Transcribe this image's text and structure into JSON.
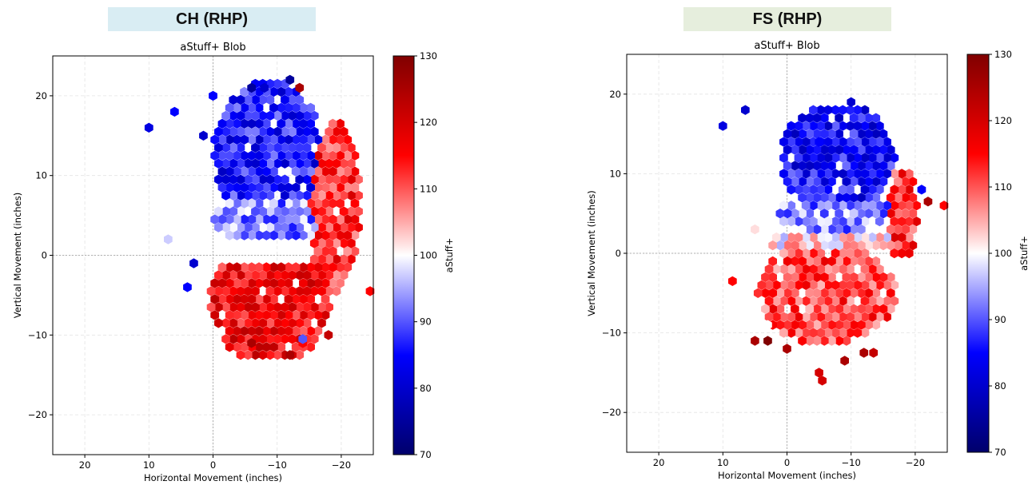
{
  "panels": [
    {
      "banner": "CH (RHP)",
      "banner_color": "#d9edf3"
    },
    {
      "banner": "FS (RHP)",
      "banner_color": "#e6eedd"
    }
  ],
  "colormap": {
    "name": "seismic",
    "low": "#00006b",
    "mid": "#ffffff",
    "high": "#800000"
  },
  "chart_data": [
    {
      "type": "heatmap",
      "subtype": "hexbin",
      "title": "aStuff+ Blob",
      "xlabel": "Horizontal Movement (inches)",
      "ylabel": "Vertical Movement (inches)",
      "xlim": [
        25,
        -25
      ],
      "ylim": [
        -25,
        25
      ],
      "xticks": [
        "20",
        "10",
        "0",
        "−10",
        "−20"
      ],
      "yticks": [
        "−20",
        "−10",
        "0",
        "10",
        "20"
      ],
      "grid": true,
      "colorbar": {
        "label": "aStuff+",
        "min": 70,
        "max": 130,
        "ticks": [
          "70",
          "80",
          "90",
          "100",
          "110",
          "120",
          "130"
        ]
      },
      "hex_grid": {
        "rows": [
          -12.5,
          21.5
        ],
        "dy": 1,
        "dx": 1.15
      },
      "regions": [
        {
          "desc": "upper glove-side cluster",
          "cx": -8.5,
          "cy": 13,
          "rx": 8.5,
          "ry": 9,
          "value": 86,
          "y_min": 3
        },
        {
          "desc": "upper middle",
          "cx": -9,
          "cy": 4.5,
          "rx": 9,
          "ry": 3,
          "value": 93
        },
        {
          "desc": "arm-side edge",
          "cx": -19,
          "cy": 6,
          "rx": 4,
          "ry": 11,
          "value": 113
        },
        {
          "desc": "lower cluster",
          "cx": -9,
          "cy": -6,
          "rx": 9.5,
          "ry": 7.5,
          "value": 116,
          "y_max": -1
        }
      ],
      "isolated": [
        {
          "x": 10,
          "y": 16,
          "value": 82
        },
        {
          "x": 6,
          "y": 18,
          "value": 85
        },
        {
          "x": 1.5,
          "y": 15,
          "value": 80
        },
        {
          "x": -12,
          "y": 22,
          "value": 75
        },
        {
          "x": -13.5,
          "y": 21,
          "value": 125
        },
        {
          "x": -6,
          "y": 21,
          "value": 75
        },
        {
          "x": -8,
          "y": 21,
          "value": 80
        },
        {
          "x": 0,
          "y": 20,
          "value": 85
        },
        {
          "x": 4,
          "y": -4,
          "value": 85
        },
        {
          "x": 3,
          "y": -1,
          "value": 80
        },
        {
          "x": -12,
          "y": -12.5,
          "value": 125
        },
        {
          "x": -14,
          "y": -11,
          "value": 115
        },
        {
          "x": -6,
          "y": -11,
          "value": 125
        },
        {
          "x": -18,
          "y": -10,
          "value": 122
        },
        {
          "x": -14,
          "y": -10.5,
          "value": 90
        },
        {
          "x": 7,
          "y": 2,
          "value": 97
        },
        {
          "x": -24.5,
          "y": -4.5,
          "value": 115
        }
      ],
      "x_range": [
        -25,
        7
      ],
      "y_range": [
        -12.5,
        21.5
      ]
    },
    {
      "type": "heatmap",
      "subtype": "hexbin",
      "title": "aStuff+ Blob",
      "xlabel": "Horizontal Movement (inches)",
      "ylabel": "Vertical Movement (inches)",
      "xlim": [
        25,
        -25
      ],
      "ylim": [
        -25,
        25
      ],
      "xticks": [
        "20",
        "10",
        "0",
        "−10",
        "−20"
      ],
      "yticks": [
        "−20",
        "−10",
        "0",
        "10",
        "20"
      ],
      "grid": true,
      "colorbar": {
        "label": "aStuff+",
        "min": 70,
        "max": 130,
        "ticks": [
          "70",
          "80",
          "90",
          "100",
          "110",
          "120",
          "130"
        ]
      },
      "hex_grid": {
        "rows": [
          -16,
          19
        ],
        "dy": 1,
        "dx": 1.15
      },
      "regions": [
        {
          "desc": "upper cluster",
          "cx": -8,
          "cy": 12,
          "rx": 9,
          "ry": 7,
          "value": 85,
          "y_min": 6
        },
        {
          "desc": "upper middle",
          "cx": -8,
          "cy": 5,
          "rx": 9.5,
          "ry": 2.5,
          "value": 93
        },
        {
          "desc": "middle band",
          "cx": -7,
          "cy": 1.5,
          "rx": 10,
          "ry": 1.5,
          "value": 102
        },
        {
          "desc": "arm-side edge",
          "cx": -18,
          "cy": 5,
          "rx": 2.5,
          "ry": 6,
          "value": 113
        },
        {
          "desc": "lower cluster",
          "cx": -6,
          "cy": -5,
          "rx": 11,
          "ry": 6.5,
          "value": 111,
          "y_max": 0
        }
      ],
      "isolated": [
        {
          "x": 10,
          "y": 16,
          "value": 82
        },
        {
          "x": 6.5,
          "y": 18,
          "value": 80
        },
        {
          "x": -5,
          "y": 14,
          "value": 85
        },
        {
          "x": -10,
          "y": 19,
          "value": 80
        },
        {
          "x": -22,
          "y": 6.5,
          "value": 125
        },
        {
          "x": -21,
          "y": 8,
          "value": 85
        },
        {
          "x": -24.5,
          "y": 6,
          "value": 115
        },
        {
          "x": 8.5,
          "y": -3.5,
          "value": 115
        },
        {
          "x": 5,
          "y": -11,
          "value": 125
        },
        {
          "x": 3,
          "y": -11,
          "value": 130
        },
        {
          "x": 0,
          "y": -12,
          "value": 125
        },
        {
          "x": -5,
          "y": -15,
          "value": 120
        },
        {
          "x": -5.5,
          "y": -16,
          "value": 120
        },
        {
          "x": -9,
          "y": -13.5,
          "value": 125
        },
        {
          "x": -12,
          "y": -12.5,
          "value": 125
        },
        {
          "x": -13.5,
          "y": -12.5,
          "value": 122
        },
        {
          "x": 5,
          "y": 3,
          "value": 102
        },
        {
          "x": 3,
          "y": -9,
          "value": 100
        }
      ],
      "x_range": [
        -22.5,
        9
      ],
      "y_range": [
        -12,
        19
      ]
    }
  ]
}
